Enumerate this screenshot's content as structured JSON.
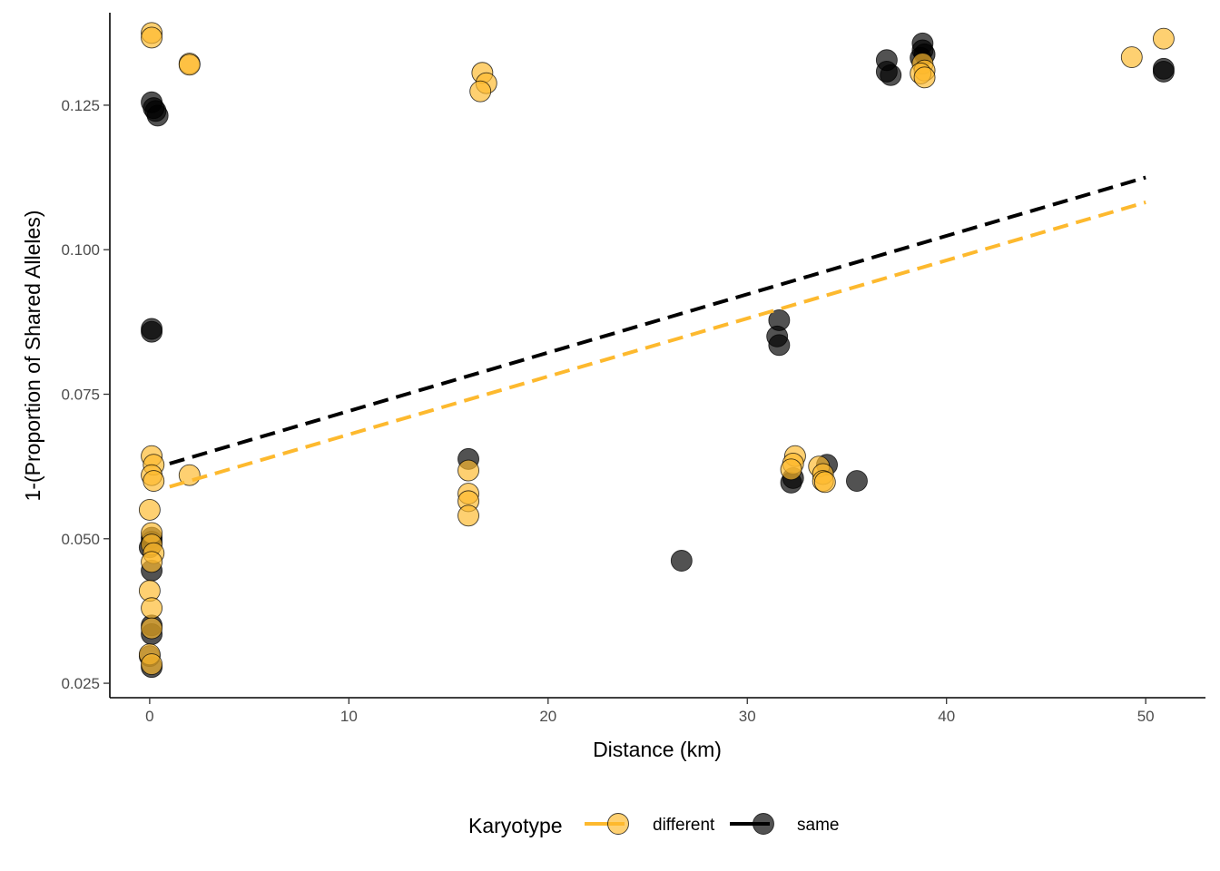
{
  "chart_data": {
    "type": "scatter",
    "title": "",
    "xlabel": "Distance (km)",
    "ylabel": "1-(Proportion of Shared Alleles)",
    "xlim": [
      -2.0,
      53.0
    ],
    "ylim": [
      0.0225,
      0.141
    ],
    "x_ticks": [
      0,
      10,
      20,
      30,
      40,
      50
    ],
    "y_ticks": [
      0.025,
      0.05,
      0.075,
      0.1,
      0.125
    ],
    "y_tick_labels": [
      "0.025",
      "0.050",
      "0.075",
      "0.100",
      "0.125"
    ],
    "grid": false,
    "legend": {
      "title": "Karyotype",
      "placement": "bottom",
      "entries": [
        "different",
        "same"
      ]
    },
    "series": [
      {
        "name": "different",
        "color": "#FDB92E",
        "trend": {
          "x": [
            1.0,
            50.0
          ],
          "y": [
            0.059,
            0.1082
          ]
        },
        "points": [
          {
            "x": 0.1,
            "y": 0.1375
          },
          {
            "x": 0.1,
            "y": 0.1367
          },
          {
            "x": 2.0,
            "y": 0.1322
          },
          {
            "x": 2.0,
            "y": 0.132
          },
          {
            "x": 16.7,
            "y": 0.1306
          },
          {
            "x": 16.9,
            "y": 0.1288
          },
          {
            "x": 16.6,
            "y": 0.1274
          },
          {
            "x": 0.1,
            "y": 0.0643
          },
          {
            "x": 0.2,
            "y": 0.0628
          },
          {
            "x": 0.1,
            "y": 0.061
          },
          {
            "x": 0.2,
            "y": 0.06
          },
          {
            "x": 2.0,
            "y": 0.061
          },
          {
            "x": 0.0,
            "y": 0.055
          },
          {
            "x": 0.1,
            "y": 0.051
          },
          {
            "x": 0.1,
            "y": 0.049
          },
          {
            "x": 0.2,
            "y": 0.0475
          },
          {
            "x": 0.1,
            "y": 0.046
          },
          {
            "x": 0.0,
            "y": 0.041
          },
          {
            "x": 0.1,
            "y": 0.038
          },
          {
            "x": 0.1,
            "y": 0.0345
          },
          {
            "x": 0.0,
            "y": 0.03
          },
          {
            "x": 0.1,
            "y": 0.0283
          },
          {
            "x": 16.0,
            "y": 0.0618
          },
          {
            "x": 16.0,
            "y": 0.0578
          },
          {
            "x": 16.0,
            "y": 0.0565
          },
          {
            "x": 16.0,
            "y": 0.054
          },
          {
            "x": 32.4,
            "y": 0.0643
          },
          {
            "x": 32.3,
            "y": 0.063
          },
          {
            "x": 32.2,
            "y": 0.062
          },
          {
            "x": 33.6,
            "y": 0.0625
          },
          {
            "x": 33.8,
            "y": 0.0612
          },
          {
            "x": 33.8,
            "y": 0.06
          },
          {
            "x": 33.9,
            "y": 0.0598
          },
          {
            "x": 38.8,
            "y": 0.1322
          },
          {
            "x": 38.9,
            "y": 0.131
          },
          {
            "x": 38.7,
            "y": 0.1305
          },
          {
            "x": 38.9,
            "y": 0.1298
          },
          {
            "x": 49.3,
            "y": 0.1333
          },
          {
            "x": 50.9,
            "y": 0.1365
          }
        ]
      },
      {
        "name": "same",
        "color": "#000000",
        "trend": {
          "x": [
            1.0,
            50.0
          ],
          "y": [
            0.063,
            0.1125
          ]
        },
        "points": [
          {
            "x": 0.1,
            "y": 0.1255
          },
          {
            "x": 0.2,
            "y": 0.1245
          },
          {
            "x": 0.3,
            "y": 0.124
          },
          {
            "x": 0.4,
            "y": 0.1232
          },
          {
            "x": 0.1,
            "y": 0.0863
          },
          {
            "x": 0.1,
            "y": 0.0858
          },
          {
            "x": 0.1,
            "y": 0.0502
          },
          {
            "x": 0.1,
            "y": 0.0495
          },
          {
            "x": 0.0,
            "y": 0.0485
          },
          {
            "x": 0.1,
            "y": 0.0445
          },
          {
            "x": 0.1,
            "y": 0.035
          },
          {
            "x": 0.1,
            "y": 0.0335
          },
          {
            "x": 0.0,
            "y": 0.0297
          },
          {
            "x": 0.1,
            "y": 0.0278
          },
          {
            "x": 16.0,
            "y": 0.0638
          },
          {
            "x": 26.7,
            "y": 0.0462
          },
          {
            "x": 31.6,
            "y": 0.0878
          },
          {
            "x": 31.5,
            "y": 0.085
          },
          {
            "x": 31.6,
            "y": 0.0835
          },
          {
            "x": 32.3,
            "y": 0.0605
          },
          {
            "x": 32.2,
            "y": 0.0597
          },
          {
            "x": 34.0,
            "y": 0.0628
          },
          {
            "x": 35.5,
            "y": 0.06
          },
          {
            "x": 37.0,
            "y": 0.1328
          },
          {
            "x": 37.0,
            "y": 0.1308
          },
          {
            "x": 37.2,
            "y": 0.1302
          },
          {
            "x": 38.8,
            "y": 0.1357
          },
          {
            "x": 38.8,
            "y": 0.1345
          },
          {
            "x": 38.9,
            "y": 0.1338
          },
          {
            "x": 38.7,
            "y": 0.1332
          },
          {
            "x": 50.9,
            "y": 0.1313
          },
          {
            "x": 50.9,
            "y": 0.1308
          }
        ]
      }
    ]
  }
}
